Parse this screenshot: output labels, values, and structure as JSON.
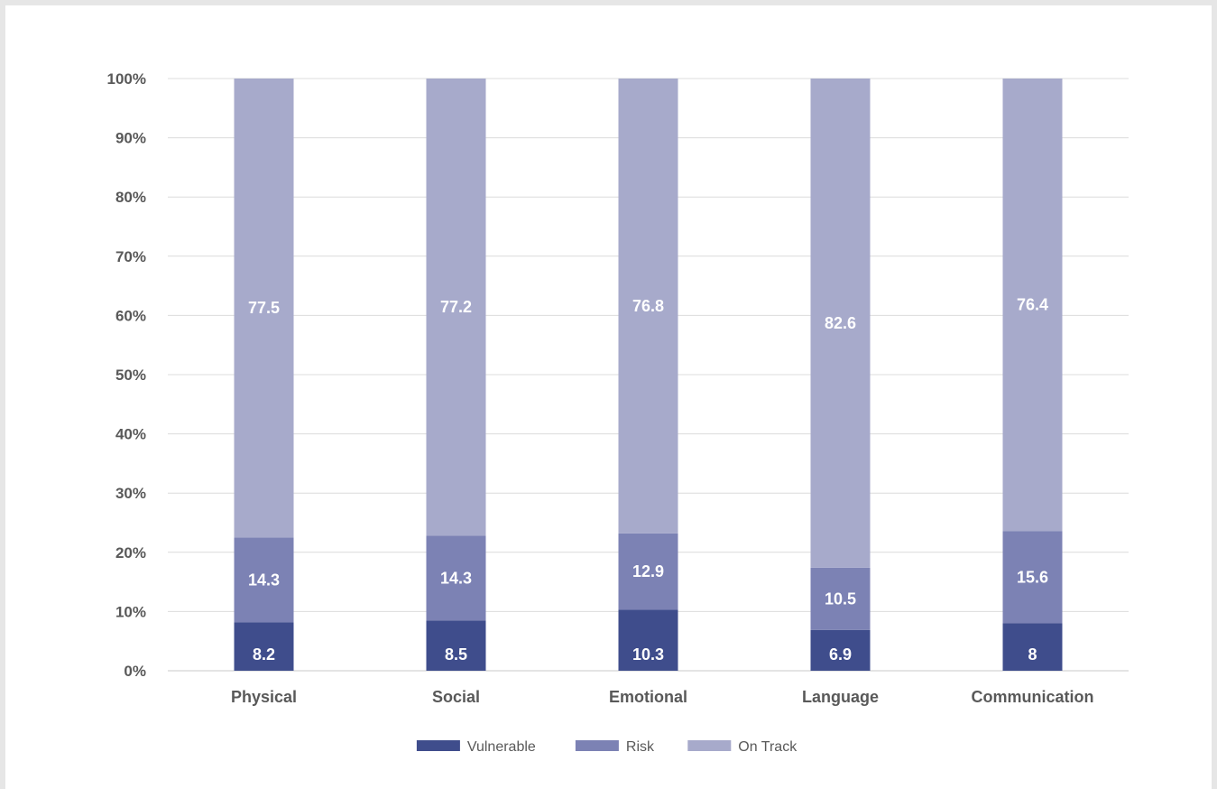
{
  "chart_data": {
    "type": "bar",
    "stacked": true,
    "percent": true,
    "title": "",
    "xlabel": "",
    "ylabel": "",
    "ylim": [
      0,
      100
    ],
    "yticks": [
      "0%",
      "10%",
      "20%",
      "30%",
      "40%",
      "50%",
      "60%",
      "70%",
      "80%",
      "90%",
      "100%"
    ],
    "categories": [
      "Physical",
      "Social",
      "Emotional",
      "Language",
      "Communication"
    ],
    "series": [
      {
        "name": "Vulnerable",
        "color": "#3f4d8c",
        "values": [
          8.2,
          8.5,
          10.3,
          6.9,
          8
        ],
        "labels": [
          "8.2",
          "8.5",
          "10.3",
          "6.9",
          "8"
        ]
      },
      {
        "name": "Risk",
        "color": "#7c82b4",
        "values": [
          14.3,
          14.3,
          12.9,
          10.5,
          15.6
        ],
        "labels": [
          "14.3",
          "14.3",
          "12.9",
          "10.5",
          "15.6"
        ]
      },
      {
        "name": "On Track",
        "color": "#a7aacb",
        "values": [
          77.5,
          77.2,
          76.8,
          82.6,
          76.4
        ],
        "labels": [
          "77.5",
          "77.2",
          "76.8",
          "82.6",
          "76.4"
        ]
      }
    ],
    "grid": true,
    "legend": "bottom"
  }
}
